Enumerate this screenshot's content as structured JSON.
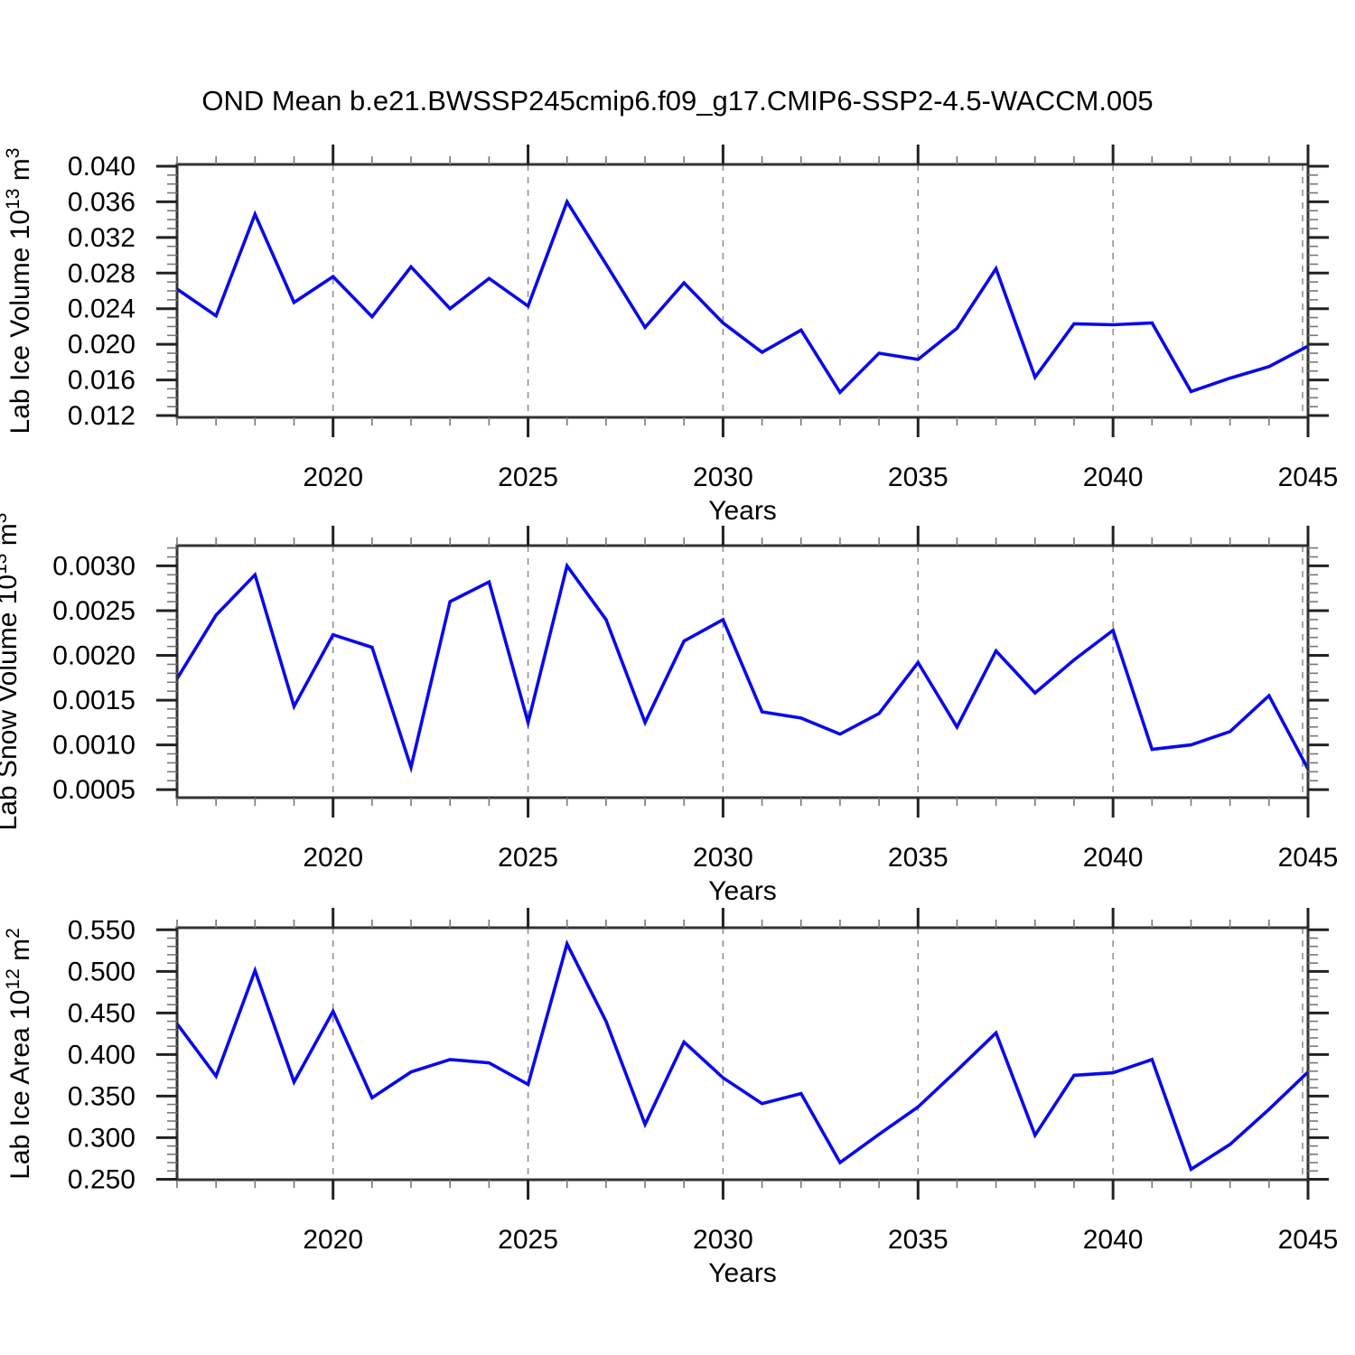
{
  "page": {
    "title": "OND Mean b.e21.BWSSP245cmip6.f09_g17.CMIP6-SSP2-4.5-WACCM.005",
    "background": "#ffffff"
  },
  "style": {
    "line_color": "#0909ee",
    "frame_color": "#333333",
    "major_tick_color": "#222222",
    "minor_tick_color": "#777777",
    "grid_color": "#8c8c8c",
    "text_color": "#000000"
  },
  "chart_data": [
    {
      "id": "lab-ice-volume",
      "type": "line",
      "ylabel": "Lab Ice Volume 10¹³ m³",
      "ylabel_segments": [
        {
          "text": "Lab Ice Volume 10",
          "sup": false
        },
        {
          "text": "13",
          "sup": true
        },
        {
          "text": " m",
          "sup": false
        },
        {
          "text": "3",
          "sup": true
        }
      ],
      "xlabel": "Years",
      "x": [
        2016,
        2017,
        2018,
        2019,
        2020,
        2021,
        2022,
        2023,
        2024,
        2025,
        2026,
        2027,
        2028,
        2029,
        2030,
        2031,
        2032,
        2033,
        2034,
        2035,
        2036,
        2037,
        2038,
        2039,
        2040,
        2041,
        2042,
        2043,
        2044,
        2045
      ],
      "values": [
        0.0262,
        0.0232,
        0.0346,
        0.0247,
        0.0276,
        0.0231,
        0.0287,
        0.024,
        0.0274,
        0.0243,
        0.036,
        0.029,
        0.0219,
        0.0269,
        0.0224,
        0.0191,
        0.0216,
        0.0146,
        0.019,
        0.0183,
        0.0218,
        0.0285,
        0.0163,
        0.0223,
        0.0222,
        0.0224,
        0.0147,
        0.0162,
        0.0175,
        0.0198
      ],
      "xlim": [
        2016,
        2045
      ],
      "ylim": [
        0.0118,
        0.0402
      ],
      "yticks_major": [
        0.012,
        0.016,
        0.02,
        0.024,
        0.028,
        0.032,
        0.036,
        0.04
      ],
      "ytick_labels": [
        "0.012",
        "0.016",
        "0.020",
        "0.024",
        "0.028",
        "0.032",
        "0.036",
        "0.040"
      ],
      "yminor_step": 0.001,
      "xticks_major": [
        2020,
        2025,
        2030,
        2035,
        2040,
        2045
      ],
      "xtick_labels": [
        "2020",
        "2025",
        "2030",
        "2035",
        "2040",
        "2045"
      ],
      "xminor_step": 1,
      "grid_x": [
        2020,
        2025,
        2030,
        2035,
        2040,
        2045
      ]
    },
    {
      "id": "lab-snow-volume",
      "type": "line",
      "ylabel": "Lab Snow Volume 10¹³ m³",
      "ylabel_segments": [
        {
          "text": "Lab Snow Volume 10",
          "sup": false
        },
        {
          "text": "13",
          "sup": true
        },
        {
          "text": " m",
          "sup": false
        },
        {
          "text": "3",
          "sup": true
        }
      ],
      "xlabel": "Years",
      "x": [
        2016,
        2017,
        2018,
        2019,
        2020,
        2021,
        2022,
        2023,
        2024,
        2025,
        2026,
        2027,
        2028,
        2029,
        2030,
        2031,
        2032,
        2033,
        2034,
        2035,
        2036,
        2037,
        2038,
        2039,
        2040,
        2041,
        2042,
        2043,
        2044,
        2045
      ],
      "values": [
        0.00174,
        0.00245,
        0.0029,
        0.00143,
        0.00223,
        0.00209,
        0.00075,
        0.0026,
        0.00282,
        0.00125,
        0.003,
        0.0024,
        0.00125,
        0.00216,
        0.0024,
        0.00137,
        0.0013,
        0.00112,
        0.00135,
        0.00192,
        0.0012,
        0.00205,
        0.00158,
        0.00195,
        0.00228,
        0.00095,
        0.001,
        0.00115,
        0.00155,
        0.00073
      ],
      "xlim": [
        2016,
        2045
      ],
      "ylim": [
        0.000411,
        0.003226
      ],
      "yticks_major": [
        0.0005,
        0.001,
        0.0015,
        0.002,
        0.0025,
        0.003
      ],
      "ytick_labels": [
        "0.0005",
        "0.0010",
        "0.0015",
        "0.0020",
        "0.0025",
        "0.0030"
      ],
      "yminor_step": 0.0001,
      "xticks_major": [
        2020,
        2025,
        2030,
        2035,
        2040,
        2045
      ],
      "xtick_labels": [
        "2020",
        "2025",
        "2030",
        "2035",
        "2040",
        "2045"
      ],
      "xminor_step": 1,
      "grid_x": [
        2020,
        2025,
        2030,
        2035,
        2040,
        2045
      ]
    },
    {
      "id": "lab-ice-area",
      "type": "line",
      "ylabel": "Lab Ice Area 10¹² m²",
      "ylabel_segments": [
        {
          "text": "Lab Ice Area 10",
          "sup": false
        },
        {
          "text": "12",
          "sup": true
        },
        {
          "text": " m",
          "sup": false
        },
        {
          "text": "2",
          "sup": true
        }
      ],
      "xlabel": "Years",
      "x": [
        2016,
        2017,
        2018,
        2019,
        2020,
        2021,
        2022,
        2023,
        2024,
        2025,
        2026,
        2027,
        2028,
        2029,
        2030,
        2031,
        2032,
        2033,
        2034,
        2035,
        2036,
        2037,
        2038,
        2039,
        2040,
        2041,
        2042,
        2043,
        2044,
        2045
      ],
      "values": [
        0.437,
        0.374,
        0.501,
        0.367,
        0.452,
        0.348,
        0.379,
        0.394,
        0.39,
        0.364,
        0.533,
        0.44,
        0.316,
        0.415,
        0.372,
        0.341,
        0.353,
        0.27,
        0.304,
        0.337,
        0.381,
        0.426,
        0.303,
        0.375,
        0.378,
        0.394,
        0.262,
        0.292,
        0.334,
        0.379
      ],
      "xlim": [
        2016,
        2045
      ],
      "ylim": [
        0.2494,
        0.5525
      ],
      "yticks_major": [
        0.25,
        0.3,
        0.35,
        0.4,
        0.45,
        0.5,
        0.55
      ],
      "ytick_labels": [
        "0.250",
        "0.300",
        "0.350",
        "0.400",
        "0.450",
        "0.500",
        "0.550"
      ],
      "yminor_step": 0.01,
      "xticks_major": [
        2020,
        2025,
        2030,
        2035,
        2040,
        2045
      ],
      "xtick_labels": [
        "2020",
        "2025",
        "2030",
        "2035",
        "2040",
        "2045"
      ],
      "xminor_step": 1,
      "grid_x": [
        2020,
        2025,
        2030,
        2035,
        2040,
        2045
      ]
    }
  ]
}
